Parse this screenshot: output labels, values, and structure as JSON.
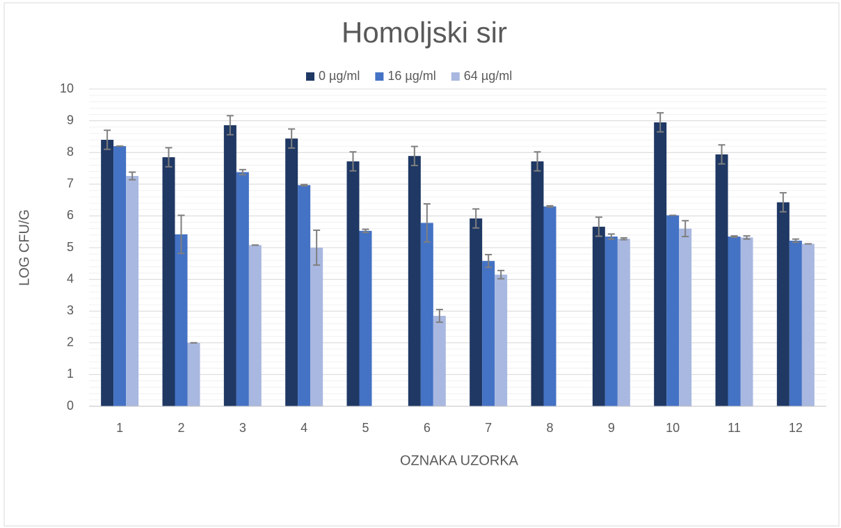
{
  "chart_data": {
    "type": "bar",
    "title": "Homoljski sir",
    "x_label": "OZNAKA UZORKA",
    "y_label": "LOG CFU/G",
    "categories": [
      "1",
      "2",
      "3",
      "4",
      "5",
      "6",
      "7",
      "8",
      "9",
      "10",
      "11",
      "12"
    ],
    "series": [
      {
        "name": "0 µg/ml",
        "color": "#1f3864",
        "values": [
          8.4,
          7.85,
          8.86,
          8.44,
          7.72,
          7.89,
          5.92,
          7.72,
          5.66,
          8.95,
          7.94,
          6.43
        ],
        "errors": [
          0.3,
          0.3,
          0.3,
          0.3,
          0.3,
          0.3,
          0.3,
          0.3,
          0.3,
          0.3,
          0.3,
          0.3
        ]
      },
      {
        "name": "16 µg/ml",
        "color": "#4472c4",
        "values": [
          8.2,
          5.42,
          7.38,
          6.97,
          5.53,
          5.78,
          4.58,
          6.3,
          5.35,
          6.02,
          5.35,
          5.22
        ],
        "errors": [
          0,
          0.6,
          0.08,
          0.02,
          0.05,
          0.6,
          0.2,
          0.02,
          0.08,
          0,
          0.02,
          0.05
        ]
      },
      {
        "name": "64 µg/ml",
        "color": "#a9b8e0",
        "values": [
          7.26,
          2.0,
          5.08,
          5.0,
          null,
          2.85,
          4.15,
          null,
          5.28,
          5.6,
          5.32,
          5.12
        ],
        "errors": [
          0.12,
          0,
          0,
          0.55,
          null,
          0.2,
          0.13,
          null,
          0.03,
          0.25,
          0.05,
          0
        ]
      }
    ],
    "ylim": [
      0,
      10
    ],
    "yticks": [
      0,
      1,
      2,
      3,
      4,
      5,
      6,
      7,
      8,
      9,
      10
    ],
    "grid": true,
    "minor_grid_step": 0.2,
    "legend": "top",
    "error_color": "#7f7f7f"
  }
}
